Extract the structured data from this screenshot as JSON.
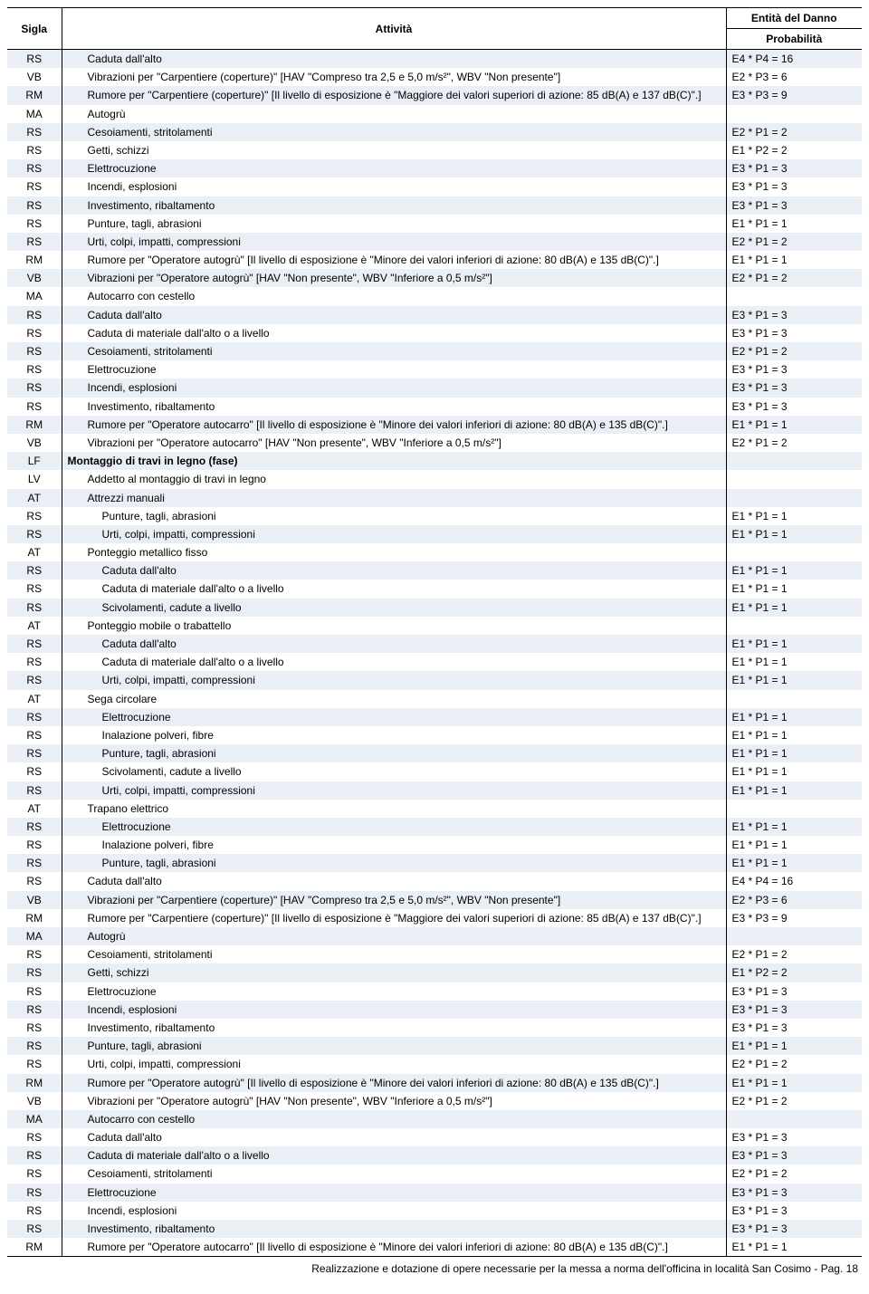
{
  "columns": {
    "sigla": "Sigla",
    "attivita": "Attività",
    "entita_line1": "Entità del Danno",
    "entita_line2": "Probabilità"
  },
  "footer": "Realizzazione e dotazione di opere necessarie per la messa a norma dell'officina in località San Cosimo - Pag. 18",
  "rows": [
    {
      "sigla": "RS",
      "attivita": "Caduta dall'alto",
      "indent": 1,
      "bold": false,
      "formula": "E4 * P4 = 16"
    },
    {
      "sigla": "VB",
      "attivita": "Vibrazioni per \"Carpentiere (coperture)\" [HAV \"Compreso tra 2,5 e 5,0 m/s²\", WBV \"Non presente\"]",
      "indent": 1,
      "bold": false,
      "formula": "E2 * P3 = 6"
    },
    {
      "sigla": "RM",
      "attivita": "Rumore per \"Carpentiere (coperture)\" [Il livello di esposizione è \"Maggiore dei valori superiori di azione: 85 dB(A) e 137 dB(C)\".]",
      "indent": 1,
      "bold": false,
      "formula": "E3 * P3 = 9"
    },
    {
      "sigla": "MA",
      "attivita": "Autogrù",
      "indent": 1,
      "bold": false,
      "formula": ""
    },
    {
      "sigla": "RS",
      "attivita": "Cesoiamenti, stritolamenti",
      "indent": 1,
      "bold": false,
      "formula": "E2 * P1 = 2"
    },
    {
      "sigla": "RS",
      "attivita": "Getti, schizzi",
      "indent": 1,
      "bold": false,
      "formula": "E1 * P2 = 2"
    },
    {
      "sigla": "RS",
      "attivita": "Elettrocuzione",
      "indent": 1,
      "bold": false,
      "formula": "E3 * P1 = 3"
    },
    {
      "sigla": "RS",
      "attivita": "Incendi, esplosioni",
      "indent": 1,
      "bold": false,
      "formula": "E3 * P1 = 3"
    },
    {
      "sigla": "RS",
      "attivita": "Investimento, ribaltamento",
      "indent": 1,
      "bold": false,
      "formula": "E3 * P1 = 3"
    },
    {
      "sigla": "RS",
      "attivita": "Punture, tagli, abrasioni",
      "indent": 1,
      "bold": false,
      "formula": "E1 * P1 = 1"
    },
    {
      "sigla": "RS",
      "attivita": "Urti, colpi, impatti, compressioni",
      "indent": 1,
      "bold": false,
      "formula": "E2 * P1 = 2"
    },
    {
      "sigla": "RM",
      "attivita": "Rumore per \"Operatore autogrù\" [Il livello di esposizione è \"Minore dei valori inferiori di azione: 80 dB(A) e 135 dB(C)\".]",
      "indent": 1,
      "bold": false,
      "formula": "E1 * P1 = 1"
    },
    {
      "sigla": "VB",
      "attivita": "Vibrazioni per \"Operatore autogrù\" [HAV \"Non presente\", WBV \"Inferiore a 0,5 m/s²\"]",
      "indent": 1,
      "bold": false,
      "formula": "E2 * P1 = 2"
    },
    {
      "sigla": "MA",
      "attivita": "Autocarro con cestello",
      "indent": 1,
      "bold": false,
      "formula": ""
    },
    {
      "sigla": "RS",
      "attivita": "Caduta dall'alto",
      "indent": 1,
      "bold": false,
      "formula": "E3 * P1 = 3"
    },
    {
      "sigla": "RS",
      "attivita": "Caduta di materiale dall'alto o a livello",
      "indent": 1,
      "bold": false,
      "formula": "E3 * P1 = 3"
    },
    {
      "sigla": "RS",
      "attivita": "Cesoiamenti, stritolamenti",
      "indent": 1,
      "bold": false,
      "formula": "E2 * P1 = 2"
    },
    {
      "sigla": "RS",
      "attivita": "Elettrocuzione",
      "indent": 1,
      "bold": false,
      "formula": "E3 * P1 = 3"
    },
    {
      "sigla": "RS",
      "attivita": "Incendi, esplosioni",
      "indent": 1,
      "bold": false,
      "formula": "E3 * P1 = 3"
    },
    {
      "sigla": "RS",
      "attivita": "Investimento, ribaltamento",
      "indent": 1,
      "bold": false,
      "formula": "E3 * P1 = 3"
    },
    {
      "sigla": "RM",
      "attivita": "Rumore per \"Operatore autocarro\" [Il livello di esposizione è \"Minore dei valori inferiori di azione: 80 dB(A) e 135 dB(C)\".]",
      "indent": 1,
      "bold": false,
      "formula": "E1 * P1 = 1"
    },
    {
      "sigla": "VB",
      "attivita": "Vibrazioni per \"Operatore autocarro\" [HAV \"Non presente\", WBV \"Inferiore a 0,5 m/s²\"]",
      "indent": 1,
      "bold": false,
      "formula": "E2 * P1 = 2"
    },
    {
      "sigla": "LF",
      "attivita": "Montaggio di travi in legno (fase)",
      "indent": 0,
      "bold": true,
      "formula": ""
    },
    {
      "sigla": "LV",
      "attivita": "Addetto al montaggio di travi in legno",
      "indent": 1,
      "bold": false,
      "formula": ""
    },
    {
      "sigla": "AT",
      "attivita": "Attrezzi manuali",
      "indent": 1,
      "bold": false,
      "formula": ""
    },
    {
      "sigla": "RS",
      "attivita": "Punture, tagli, abrasioni",
      "indent": 2,
      "bold": false,
      "formula": "E1 * P1 = 1"
    },
    {
      "sigla": "RS",
      "attivita": "Urti, colpi, impatti, compressioni",
      "indent": 2,
      "bold": false,
      "formula": "E1 * P1 = 1"
    },
    {
      "sigla": "AT",
      "attivita": "Ponteggio metallico fisso",
      "indent": 1,
      "bold": false,
      "formula": ""
    },
    {
      "sigla": "RS",
      "attivita": "Caduta dall'alto",
      "indent": 2,
      "bold": false,
      "formula": "E1 * P1 = 1"
    },
    {
      "sigla": "RS",
      "attivita": "Caduta di materiale dall'alto o a livello",
      "indent": 2,
      "bold": false,
      "formula": "E1 * P1 = 1"
    },
    {
      "sigla": "RS",
      "attivita": "Scivolamenti, cadute a livello",
      "indent": 2,
      "bold": false,
      "formula": "E1 * P1 = 1"
    },
    {
      "sigla": "AT",
      "attivita": "Ponteggio mobile o trabattello",
      "indent": 1,
      "bold": false,
      "formula": ""
    },
    {
      "sigla": "RS",
      "attivita": "Caduta dall'alto",
      "indent": 2,
      "bold": false,
      "formula": "E1 * P1 = 1"
    },
    {
      "sigla": "RS",
      "attivita": "Caduta di materiale dall'alto o a livello",
      "indent": 2,
      "bold": false,
      "formula": "E1 * P1 = 1"
    },
    {
      "sigla": "RS",
      "attivita": "Urti, colpi, impatti, compressioni",
      "indent": 2,
      "bold": false,
      "formula": "E1 * P1 = 1"
    },
    {
      "sigla": "AT",
      "attivita": "Sega circolare",
      "indent": 1,
      "bold": false,
      "formula": ""
    },
    {
      "sigla": "RS",
      "attivita": "Elettrocuzione",
      "indent": 2,
      "bold": false,
      "formula": "E1 * P1 = 1"
    },
    {
      "sigla": "RS",
      "attivita": "Inalazione polveri, fibre",
      "indent": 2,
      "bold": false,
      "formula": "E1 * P1 = 1"
    },
    {
      "sigla": "RS",
      "attivita": "Punture, tagli, abrasioni",
      "indent": 2,
      "bold": false,
      "formula": "E1 * P1 = 1"
    },
    {
      "sigla": "RS",
      "attivita": "Scivolamenti, cadute a livello",
      "indent": 2,
      "bold": false,
      "formula": "E1 * P1 = 1"
    },
    {
      "sigla": "RS",
      "attivita": "Urti, colpi, impatti, compressioni",
      "indent": 2,
      "bold": false,
      "formula": "E1 * P1 = 1"
    },
    {
      "sigla": "AT",
      "attivita": "Trapano elettrico",
      "indent": 1,
      "bold": false,
      "formula": ""
    },
    {
      "sigla": "RS",
      "attivita": "Elettrocuzione",
      "indent": 2,
      "bold": false,
      "formula": "E1 * P1 = 1"
    },
    {
      "sigla": "RS",
      "attivita": "Inalazione polveri, fibre",
      "indent": 2,
      "bold": false,
      "formula": "E1 * P1 = 1"
    },
    {
      "sigla": "RS",
      "attivita": "Punture, tagli, abrasioni",
      "indent": 2,
      "bold": false,
      "formula": "E1 * P1 = 1"
    },
    {
      "sigla": "RS",
      "attivita": "Caduta dall'alto",
      "indent": 1,
      "bold": false,
      "formula": "E4 * P4 = 16"
    },
    {
      "sigla": "VB",
      "attivita": "Vibrazioni per \"Carpentiere (coperture)\" [HAV \"Compreso tra 2,5 e 5,0 m/s²\", WBV \"Non presente\"]",
      "indent": 1,
      "bold": false,
      "formula": "E2 * P3 = 6"
    },
    {
      "sigla": "RM",
      "attivita": "Rumore per \"Carpentiere (coperture)\" [Il livello di esposizione è \"Maggiore dei valori superiori di azione: 85 dB(A) e 137 dB(C)\".]",
      "indent": 1,
      "bold": false,
      "formula": "E3 * P3 = 9"
    },
    {
      "sigla": "MA",
      "attivita": "Autogrù",
      "indent": 1,
      "bold": false,
      "formula": ""
    },
    {
      "sigla": "RS",
      "attivita": "Cesoiamenti, stritolamenti",
      "indent": 1,
      "bold": false,
      "formula": "E2 * P1 = 2"
    },
    {
      "sigla": "RS",
      "attivita": "Getti, schizzi",
      "indent": 1,
      "bold": false,
      "formula": "E1 * P2 = 2"
    },
    {
      "sigla": "RS",
      "attivita": "Elettrocuzione",
      "indent": 1,
      "bold": false,
      "formula": "E3 * P1 = 3"
    },
    {
      "sigla": "RS",
      "attivita": "Incendi, esplosioni",
      "indent": 1,
      "bold": false,
      "formula": "E3 * P1 = 3"
    },
    {
      "sigla": "RS",
      "attivita": "Investimento, ribaltamento",
      "indent": 1,
      "bold": false,
      "formula": "E3 * P1 = 3"
    },
    {
      "sigla": "RS",
      "attivita": "Punture, tagli, abrasioni",
      "indent": 1,
      "bold": false,
      "formula": "E1 * P1 = 1"
    },
    {
      "sigla": "RS",
      "attivita": "Urti, colpi, impatti, compressioni",
      "indent": 1,
      "bold": false,
      "formula": "E2 * P1 = 2"
    },
    {
      "sigla": "RM",
      "attivita": "Rumore per \"Operatore autogrù\" [Il livello di esposizione è \"Minore dei valori inferiori di azione: 80 dB(A) e 135 dB(C)\".]",
      "indent": 1,
      "bold": false,
      "formula": "E1 * P1 = 1"
    },
    {
      "sigla": "VB",
      "attivita": "Vibrazioni per \"Operatore autogrù\" [HAV \"Non presente\", WBV \"Inferiore a 0,5 m/s²\"]",
      "indent": 1,
      "bold": false,
      "formula": "E2 * P1 = 2"
    },
    {
      "sigla": "MA",
      "attivita": "Autocarro con cestello",
      "indent": 1,
      "bold": false,
      "formula": ""
    },
    {
      "sigla": "RS",
      "attivita": "Caduta dall'alto",
      "indent": 1,
      "bold": false,
      "formula": "E3 * P1 = 3"
    },
    {
      "sigla": "RS",
      "attivita": "Caduta di materiale dall'alto o a livello",
      "indent": 1,
      "bold": false,
      "formula": "E3 * P1 = 3"
    },
    {
      "sigla": "RS",
      "attivita": "Cesoiamenti, stritolamenti",
      "indent": 1,
      "bold": false,
      "formula": "E2 * P1 = 2"
    },
    {
      "sigla": "RS",
      "attivita": "Elettrocuzione",
      "indent": 1,
      "bold": false,
      "formula": "E3 * P1 = 3"
    },
    {
      "sigla": "RS",
      "attivita": "Incendi, esplosioni",
      "indent": 1,
      "bold": false,
      "formula": "E3 * P1 = 3"
    },
    {
      "sigla": "RS",
      "attivita": "Investimento, ribaltamento",
      "indent": 1,
      "bold": false,
      "formula": "E3 * P1 = 3"
    },
    {
      "sigla": "RM",
      "attivita": "Rumore per \"Operatore autocarro\" [Il livello di esposizione è \"Minore dei valori inferiori di azione: 80 dB(A) e 135 dB(C)\".]",
      "indent": 1,
      "bold": false,
      "formula": "E1 * P1 = 1"
    }
  ]
}
